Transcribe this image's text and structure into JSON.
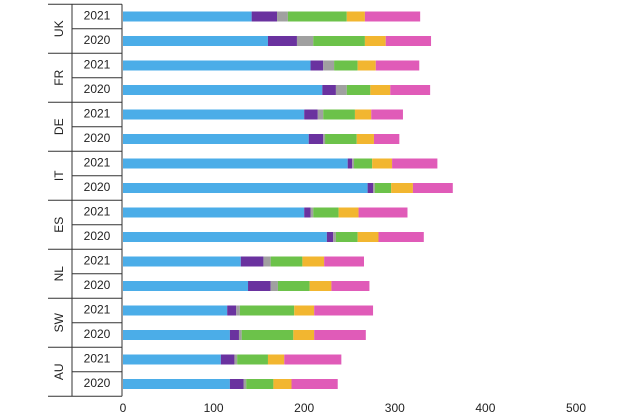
{
  "chart_data": {
    "type": "bar",
    "orientation": "horizontal",
    "stacked": true,
    "title": "",
    "xlabel": "",
    "ylabel": "",
    "xlim": [
      0,
      500
    ],
    "x_ticks": [
      "0",
      "100",
      "200",
      "300",
      "400",
      "500"
    ],
    "grid": false,
    "legend": "none",
    "groups": [
      {
        "country": "UK",
        "bars": [
          {
            "year": "2021",
            "segments": [
              142,
              28,
              12,
              65,
              20,
              61
            ]
          },
          {
            "year": "2020",
            "segments": [
              160,
              32,
              18,
              57,
              23,
              50
            ]
          }
        ]
      },
      {
        "country": "FR",
        "bars": [
          {
            "year": "2021",
            "segments": [
              207,
              14,
              12,
              26,
              20,
              48
            ]
          },
          {
            "year": "2020",
            "segments": [
              220,
              15,
              12,
              26,
              22,
              44
            ]
          }
        ]
      },
      {
        "country": "DE",
        "bars": [
          {
            "year": "2021",
            "segments": [
              200,
              15,
              6,
              35,
              18,
              35
            ]
          },
          {
            "year": "2020",
            "segments": [
              205,
              16,
              2,
              35,
              19,
              28
            ]
          }
        ]
      },
      {
        "country": "IT",
        "bars": [
          {
            "year": "2021",
            "segments": [
              248,
              5,
              2,
              20,
              22,
              50
            ]
          },
          {
            "year": "2020",
            "segments": [
              270,
              6,
              2,
              18,
              24,
              44
            ]
          }
        ]
      },
      {
        "country": "ES",
        "bars": [
          {
            "year": "2021",
            "segments": [
              200,
              7,
              3,
              28,
              22,
              54
            ]
          },
          {
            "year": "2020",
            "segments": [
              225,
              7,
              3,
              24,
              23,
              50
            ]
          }
        ]
      },
      {
        "country": "NL",
        "bars": [
          {
            "year": "2021",
            "segments": [
              130,
              25,
              8,
              35,
              24,
              44
            ]
          },
          {
            "year": "2020",
            "segments": [
              138,
              25,
              8,
              35,
              24,
              42
            ]
          }
        ]
      },
      {
        "country": "SW",
        "bars": [
          {
            "year": "2021",
            "segments": [
              115,
              10,
              4,
              60,
              22,
              65
            ]
          },
          {
            "year": "2020",
            "segments": [
              118,
              10,
              3,
              57,
              23,
              57
            ]
          }
        ]
      },
      {
        "country": "AU",
        "bars": [
          {
            "year": "2021",
            "segments": [
              108,
              15,
              3,
              34,
              18,
              63
            ]
          },
          {
            "year": "2020",
            "segments": [
              118,
              15,
              3,
              30,
              20,
              51
            ]
          }
        ]
      }
    ],
    "segment_colors": [
      "#4BADE8",
      "#6A329F",
      "#A0A0A0",
      "#6CC24A",
      "#F2B630",
      "#E05BB8"
    ]
  }
}
